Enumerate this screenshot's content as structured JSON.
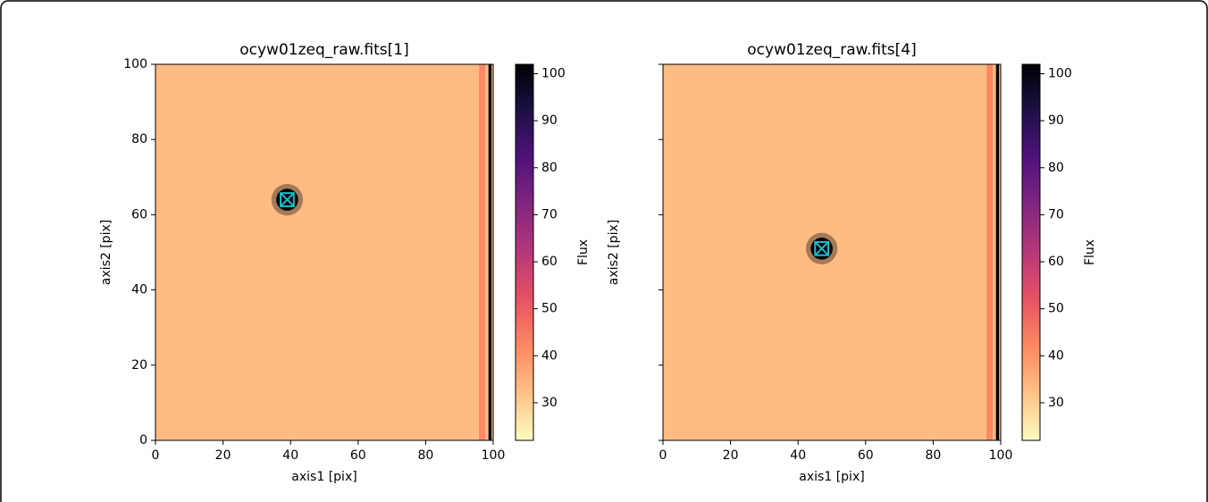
{
  "chart_data": [
    {
      "type": "image",
      "title": "ocyw01zeq_raw.fits[1]",
      "x_label": "axis1 [pix]",
      "y_label": "axis2 [pix]",
      "xlim": [
        0,
        100
      ],
      "ylim": [
        0,
        100
      ],
      "xticks": [
        0,
        20,
        40,
        60,
        80,
        100
      ],
      "yticks": [
        0,
        20,
        40,
        60,
        80,
        100
      ],
      "show_ytick_labels": true,
      "background": 33,
      "source": {
        "x": 39,
        "y": 64,
        "peak": 102,
        "radius": 2.6
      },
      "marker_color": "#17becf",
      "columns": [
        {
          "x": [
            95.8,
            97.6
          ],
          "value": 42
        },
        {
          "x": [
            98.6,
            99.5
          ],
          "value": 102
        }
      ],
      "colorbar": {
        "label": "Flux",
        "lim": [
          22,
          102
        ],
        "ticks": [
          30,
          40,
          50,
          60,
          70,
          80,
          90,
          100
        ],
        "colormap": [
          "#fcfdbf",
          "#fec287",
          "#fc8961",
          "#e75263",
          "#b73779",
          "#822681",
          "#51127c",
          "#1d1147",
          "#000004"
        ]
      }
    },
    {
      "type": "image",
      "title": "ocyw01zeq_raw.fits[4]",
      "x_label": "axis1 [pix]",
      "y_label": "axis2 [pix]",
      "xlim": [
        0,
        100
      ],
      "ylim": [
        0,
        100
      ],
      "xticks": [
        0,
        20,
        40,
        60,
        80,
        100
      ],
      "yticks": [
        0,
        20,
        40,
        60,
        80,
        100
      ],
      "show_ytick_labels": false,
      "background": 33,
      "source": {
        "x": 47,
        "y": 51,
        "peak": 102,
        "radius": 2.6
      },
      "marker_color": "#17becf",
      "columns": [
        {
          "x": [
            95.8,
            97.6
          ],
          "value": 42
        },
        {
          "x": [
            98.6,
            99.5
          ],
          "value": 102
        }
      ],
      "colorbar": {
        "label": "Flux",
        "lim": [
          22,
          102
        ],
        "ticks": [
          30,
          40,
          50,
          60,
          70,
          80,
          90,
          100
        ],
        "colormap": [
          "#fcfdbf",
          "#fec287",
          "#fc8961",
          "#e75263",
          "#b73779",
          "#822681",
          "#51127c",
          "#1d1147",
          "#000004"
        ]
      }
    }
  ]
}
